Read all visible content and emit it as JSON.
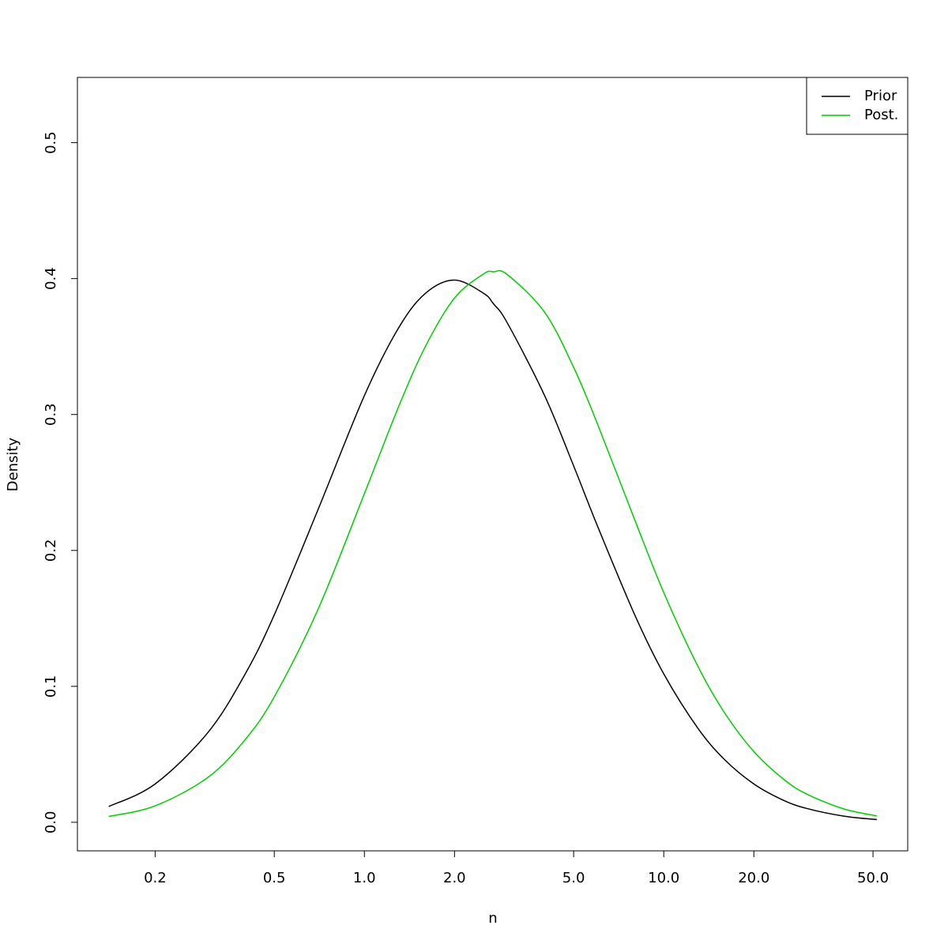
{
  "chart_data": {
    "type": "line",
    "xlabel": "n",
    "ylabel": "Density",
    "xlog": true,
    "x": [
      0.14,
      0.2,
      0.3,
      0.4,
      0.5,
      0.7,
      1,
      1.3,
      1.6,
      2,
      2.5,
      2.7,
      3,
      4,
      5,
      6,
      8,
      10,
      13,
      16,
      20,
      25,
      30,
      40,
      51.5
    ],
    "series": [
      {
        "name": "Prior",
        "color": "#000000",
        "values": [
          0.0116,
          0.0282,
          0.066,
          0.1092,
          0.1526,
          0.23,
          0.3139,
          0.3636,
          0.3892,
          0.3989,
          0.3892,
          0.3814,
          0.3675,
          0.3139,
          0.2622,
          0.2182,
          0.1526,
          0.1092,
          0.0692,
          0.0459,
          0.0282,
          0.0164,
          0.0102,
          0.0045,
          0.002
        ]
      },
      {
        "name": "Post.",
        "color": "#00cd00",
        "values": [
          0.0043,
          0.0121,
          0.033,
          0.0609,
          0.0923,
          0.1566,
          0.2418,
          0.3056,
          0.3502,
          0.3857,
          0.4034,
          0.405,
          0.403,
          0.3752,
          0.3347,
          0.2933,
          0.2225,
          0.169,
          0.1148,
          0.0802,
          0.052,
          0.0321,
          0.0208,
          0.0098,
          0.0047
        ]
      }
    ],
    "xlim": [
      0.11,
      65.3
    ],
    "ylim": [
      -0.021,
      0.548
    ],
    "xticks": [
      0.2,
      0.5,
      {
        "value": 1,
        "label": "1.0"
      },
      {
        "value": 2,
        "label": "2.0"
      },
      {
        "value": 5,
        "label": "5.0"
      },
      {
        "value": 10,
        "label": "10.0"
      },
      {
        "value": 20,
        "label": "20.0"
      },
      {
        "value": 50,
        "label": "50.0"
      }
    ],
    "yticks": [
      {
        "value": 0,
        "label": "0.0"
      },
      0.1,
      0.2,
      0.3,
      0.4,
      0.5
    ],
    "legend": "topright"
  }
}
